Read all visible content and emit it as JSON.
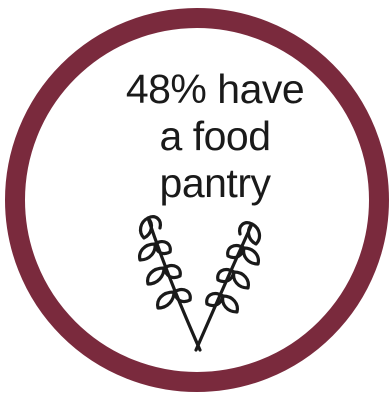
{
  "stat": {
    "lines": [
      "48% have",
      "a food",
      "pantry"
    ]
  },
  "icon": {
    "name": "wheat-icon"
  },
  "colors": {
    "ring": "#7a2a3d",
    "text": "#1a1a1a",
    "background": "#ffffff"
  }
}
